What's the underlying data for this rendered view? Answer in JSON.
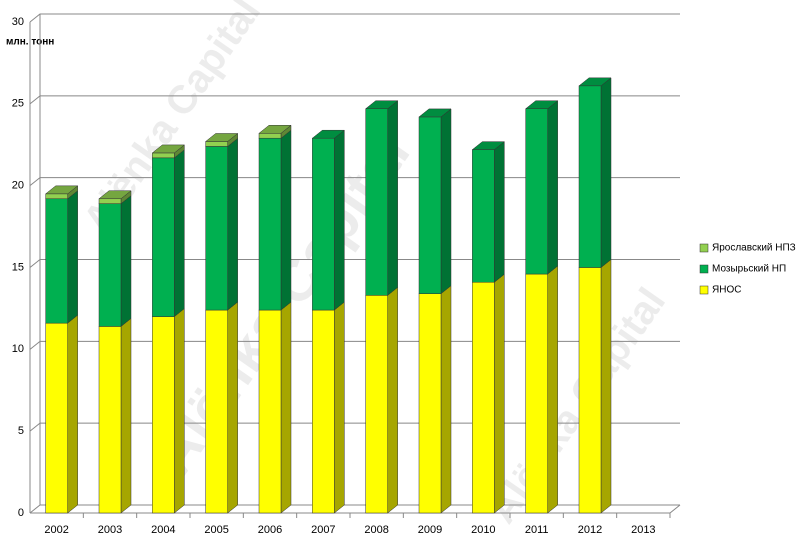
{
  "chart_data": {
    "type": "bar3d_stacked",
    "y_label": "млн. тонн",
    "watermark": "Alënka Capital",
    "categories": [
      "2002",
      "2003",
      "2004",
      "2005",
      "2006",
      "2007",
      "2008",
      "2009",
      "2010",
      "2011",
      "2012",
      "2013"
    ],
    "series": [
      {
        "name": "ЯНОС",
        "color": "#ffff00",
        "values": [
          11.6,
          11.4,
          12.0,
          12.4,
          12.4,
          12.4,
          13.3,
          13.4,
          14.1,
          14.6,
          15.0,
          null
        ]
      },
      {
        "name": "Мозырьский НП",
        "color": "#00b050",
        "values": [
          7.6,
          7.5,
          9.7,
          10.0,
          10.5,
          10.5,
          11.4,
          10.8,
          8.1,
          10.1,
          11.1,
          null
        ]
      },
      {
        "name": "Ярославский НПЗ",
        "color": "#92d050",
        "values": [
          0.3,
          0.3,
          0.3,
          0.3,
          0.3,
          0,
          0,
          0,
          0,
          0,
          0,
          null
        ]
      }
    ],
    "ylim": [
      0,
      30
    ],
    "yticks": [
      0,
      5,
      10,
      15,
      20,
      25,
      30
    ],
    "grid": true,
    "legend": "right"
  }
}
